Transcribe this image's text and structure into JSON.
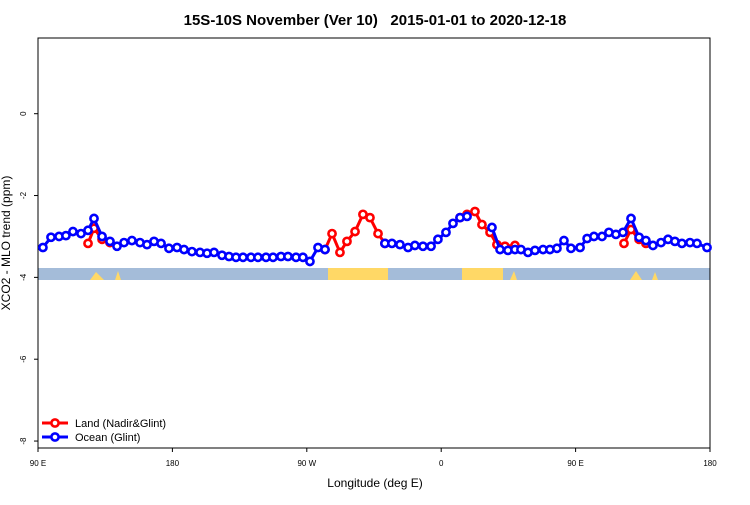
{
  "chart_data": {
    "type": "line",
    "title": "15S-10S November (Ver 10)   2015-01-01 to 2020-12-18",
    "x_label": "Longitude (deg E)",
    "y_label": "XCO2 - MLO trend (ppm)",
    "xlim": [
      87,
      537
    ],
    "ylim": [
      -8.17,
      1.85
    ],
    "xticks": [
      {
        "value": 87,
        "label": "90 E"
      },
      {
        "value": 177,
        "label": "180"
      },
      {
        "value": 267,
        "label": "90 W"
      },
      {
        "value": 357,
        "label": "0"
      },
      {
        "value": 447,
        "label": "90 E"
      },
      {
        "value": 537,
        "label": "180"
      }
    ],
    "yticks": [
      -8,
      -6,
      -4,
      -2,
      0
    ],
    "legend": "bottom-left",
    "series": [
      {
        "name": "Land (Nadir&Glint)",
        "color": "#ff0000",
        "x": [
          120.5,
          124.5,
          129.9,
          135.2,
          200,
          279.2,
          283.9,
          289.2,
          293.9,
          299.3,
          304.6,
          309.3,
          314.7,
          319.3,
          345,
          369.6,
          374.3,
          379.6,
          384.3,
          389.7,
          394.3,
          399.7,
          406.4,
          460,
          479.4,
          484.1,
          489.5,
          494.1
        ],
        "values": [
          -3.17,
          -2.8,
          -3.07,
          -3.15,
          null,
          -3.32,
          -2.93,
          -3.39,
          -3.12,
          -2.88,
          -2.46,
          -2.54,
          -2.93,
          -3.17,
          null,
          -2.54,
          -2.46,
          -2.39,
          -2.71,
          -2.9,
          -3.2,
          -3.24,
          -3.22,
          null,
          -3.17,
          -2.83,
          -3.07,
          -3.17
        ]
      },
      {
        "name": "Ocean (Glint)",
        "color": "#0000ff",
        "x": [
          90.3,
          95.7,
          101.1,
          105.7,
          110.4,
          115.8,
          120.5,
          124.5,
          129.9,
          135.2,
          139.9,
          144.6,
          149.9,
          155.3,
          160.0,
          164.7,
          169.4,
          174.7,
          180.1,
          184.8,
          190.1,
          195.5,
          200.2,
          204.9,
          210.2,
          214.9,
          219.6,
          224.3,
          229.6,
          234.3,
          239.7,
          244.4,
          249.7,
          254.4,
          259.8,
          264.4,
          269.1,
          274.5,
          279.2,
          299,
          319.3,
          324.0,
          329.4,
          334.8,
          339.4,
          344.8,
          350.2,
          354.8,
          360.2,
          364.9,
          369.6,
          374.3,
          383,
          391.0,
          396.4,
          401.7,
          406.4,
          410.4,
          415.1,
          419.8,
          425.2,
          429.8,
          434.5,
          439.2,
          443.9,
          450.0,
          454.7,
          459.3,
          464.7,
          469.3,
          474.0,
          478.7,
          484.1,
          489.5,
          494.1,
          498.8,
          504.2,
          508.9,
          513.5,
          518.2,
          523.6,
          528.3,
          535.0
        ],
        "values": [
          -3.27,
          -3.02,
          -3.0,
          -2.98,
          -2.88,
          -2.93,
          -2.85,
          -2.56,
          -3.0,
          -3.12,
          -3.24,
          -3.15,
          -3.1,
          -3.15,
          -3.2,
          -3.12,
          -3.17,
          -3.29,
          -3.27,
          -3.32,
          -3.37,
          -3.39,
          -3.41,
          -3.39,
          -3.46,
          -3.49,
          -3.51,
          -3.51,
          -3.51,
          -3.51,
          -3.51,
          -3.51,
          -3.49,
          -3.49,
          -3.51,
          -3.51,
          -3.61,
          -3.27,
          -3.32,
          null,
          -3.17,
          -3.17,
          -3.2,
          -3.27,
          -3.22,
          -3.24,
          -3.24,
          -3.07,
          -2.9,
          -2.68,
          -2.54,
          -2.51,
          null,
          -2.78,
          -3.32,
          -3.34,
          -3.32,
          -3.32,
          -3.39,
          -3.34,
          -3.32,
          -3.32,
          -3.29,
          -3.1,
          -3.29,
          -3.27,
          -3.05,
          -3.0,
          -3.0,
          -2.9,
          -2.95,
          -2.9,
          -2.56,
          -3.02,
          -3.1,
          -3.22,
          -3.15,
          -3.07,
          -3.12,
          -3.17,
          -3.15,
          -3.17,
          -3.27
        ]
      }
    ]
  }
}
